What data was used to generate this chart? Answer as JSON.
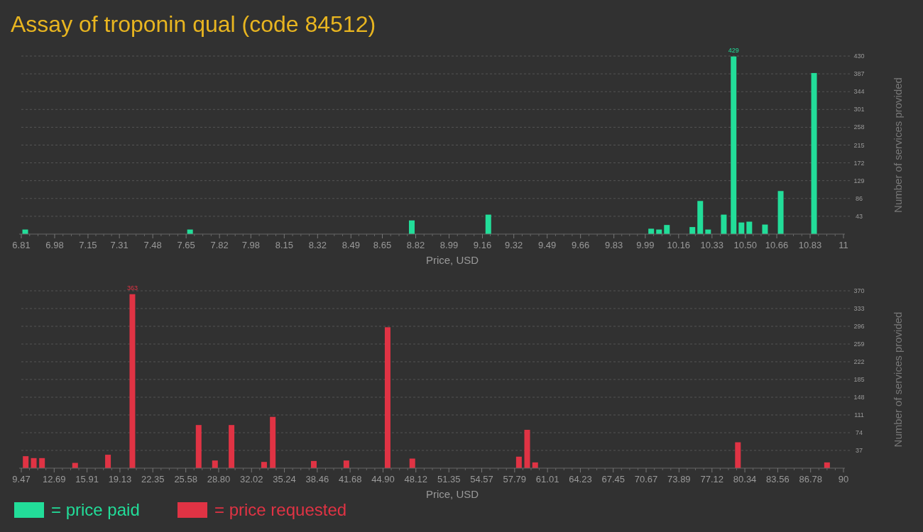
{
  "chart_data": [
    {
      "type": "bar",
      "title": "Assay of troponin qual (code 84512)",
      "xlabel": "Price, USD",
      "ylabel": "Number of services provided",
      "grid": "y",
      "legend": "bottom",
      "x": [
        6.83,
        7.67,
        8.8,
        9.19,
        10.02,
        10.06,
        10.1,
        10.23,
        10.27,
        10.31,
        10.39,
        10.44,
        10.48,
        10.52,
        10.6,
        10.68,
        10.85
      ],
      "series": [
        {
          "name": "= price paid",
          "color": "#22dd99",
          "values": [
            11,
            11,
            33,
            47,
            13,
            11,
            22,
            17,
            80,
            11,
            47,
            429,
            28,
            30,
            23,
            104,
            389
          ],
          "value_labels": [
            null,
            null,
            null,
            null,
            null,
            null,
            null,
            null,
            null,
            null,
            null,
            "429",
            null,
            null,
            null,
            null,
            null
          ]
        }
      ],
      "xlim": [
        6.81,
        11
      ],
      "xticks": [
        6.81,
        6.98,
        7.15,
        7.31,
        7.48,
        7.65,
        7.82,
        7.98,
        8.15,
        8.32,
        8.49,
        8.65,
        8.82,
        8.99,
        9.16,
        9.32,
        9.49,
        9.66,
        9.83,
        9.99,
        10.16,
        10.33,
        {
          "value": 10.5,
          "label": "10.50"
        },
        10.66,
        10.83,
        11
      ],
      "ylim": [
        0,
        430
      ],
      "yticks": [
        43,
        86,
        129,
        172,
        215,
        258,
        301,
        344,
        387,
        430
      ]
    },
    {
      "type": "bar",
      "xlabel": "Price, USD",
      "ylabel": "Number of services provided",
      "grid": "y",
      "legend": "bottom",
      "x": [
        9.9,
        10.69,
        11.5,
        14.74,
        17.96,
        20.35,
        26.84,
        28.44,
        30.06,
        33.25,
        34.1,
        38.12,
        41.31,
        45.35,
        47.77,
        58.21,
        59.02,
        59.8,
        79.66,
        88.39
      ],
      "series": [
        {
          "name": "= price requested",
          "color": "#e03344",
          "values": [
            25,
            21,
            21,
            11,
            28,
            363,
            90,
            16,
            90,
            13,
            107,
            15,
            16,
            294,
            20,
            24,
            80,
            12,
            54,
            12
          ],
          "value_labels": [
            null,
            null,
            null,
            null,
            null,
            "363",
            null,
            null,
            null,
            null,
            null,
            null,
            null,
            null,
            null,
            null,
            null,
            null,
            null,
            null
          ]
        }
      ],
      "xlim": [
        9.47,
        90
      ],
      "xticks": [
        9.47,
        12.69,
        15.91,
        19.13,
        22.35,
        25.58,
        {
          "value": 28.8,
          "label": "28.80"
        },
        32.02,
        35.24,
        38.46,
        41.68,
        {
          "value": 44.9,
          "label": "44.90"
        },
        48.12,
        51.35,
        54.57,
        57.79,
        61.01,
        64.23,
        67.45,
        70.67,
        73.89,
        77.12,
        80.34,
        83.56,
        86.78,
        90
      ],
      "ylim": [
        0,
        370
      ],
      "yticks": [
        37,
        74,
        111,
        148,
        185,
        222,
        259,
        296,
        333,
        370
      ]
    }
  ]
}
